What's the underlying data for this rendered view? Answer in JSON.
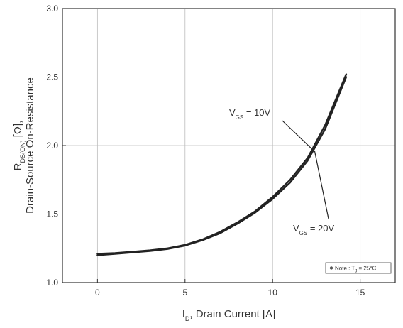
{
  "chart_data": {
    "type": "line",
    "xlabel": {
      "main": "I",
      "sub": "D",
      "rest": ", Drain Current [A]"
    },
    "ylabel": {
      "line1_main": "R",
      "line1_sub": "DS(ON)",
      "line1_rest": " [Ω],",
      "line2": "Drain-Source On-Resistance"
    },
    "xlim": [
      -2,
      17
    ],
    "ylim": [
      1.0,
      3.0
    ],
    "x_ticks": [
      0,
      5,
      10,
      15
    ],
    "y_ticks": [
      1.0,
      1.5,
      2.0,
      2.5,
      3.0
    ],
    "grid": true,
    "series": [
      {
        "name": "VGS = 10V",
        "x": [
          0,
          1,
          2,
          3,
          4,
          5,
          6,
          7,
          8,
          9,
          10,
          11,
          12,
          13,
          14.2
        ],
        "y": [
          1.2,
          1.21,
          1.22,
          1.23,
          1.245,
          1.27,
          1.31,
          1.36,
          1.43,
          1.51,
          1.61,
          1.73,
          1.89,
          2.12,
          2.5
        ]
      },
      {
        "name": "VGS = 20V",
        "x": [
          0,
          1,
          2,
          3,
          4,
          5,
          6,
          7,
          8,
          9,
          10,
          11,
          12,
          13,
          14.2
        ],
        "y": [
          1.21,
          1.215,
          1.225,
          1.235,
          1.25,
          1.275,
          1.315,
          1.37,
          1.44,
          1.52,
          1.625,
          1.75,
          1.91,
          2.15,
          2.52
        ]
      }
    ],
    "annotations": [
      {
        "main": "V",
        "sub": "GS",
        "rest": " = 10V",
        "target_x": 12.2,
        "target_y": 1.98
      },
      {
        "main": "V",
        "sub": "GS",
        "rest": " = 20V",
        "target_x": 12.4,
        "target_y": 1.96
      }
    ],
    "note": {
      "prefix": "Note : T",
      "sub": "J",
      "suffix": " = 25°C"
    }
  }
}
